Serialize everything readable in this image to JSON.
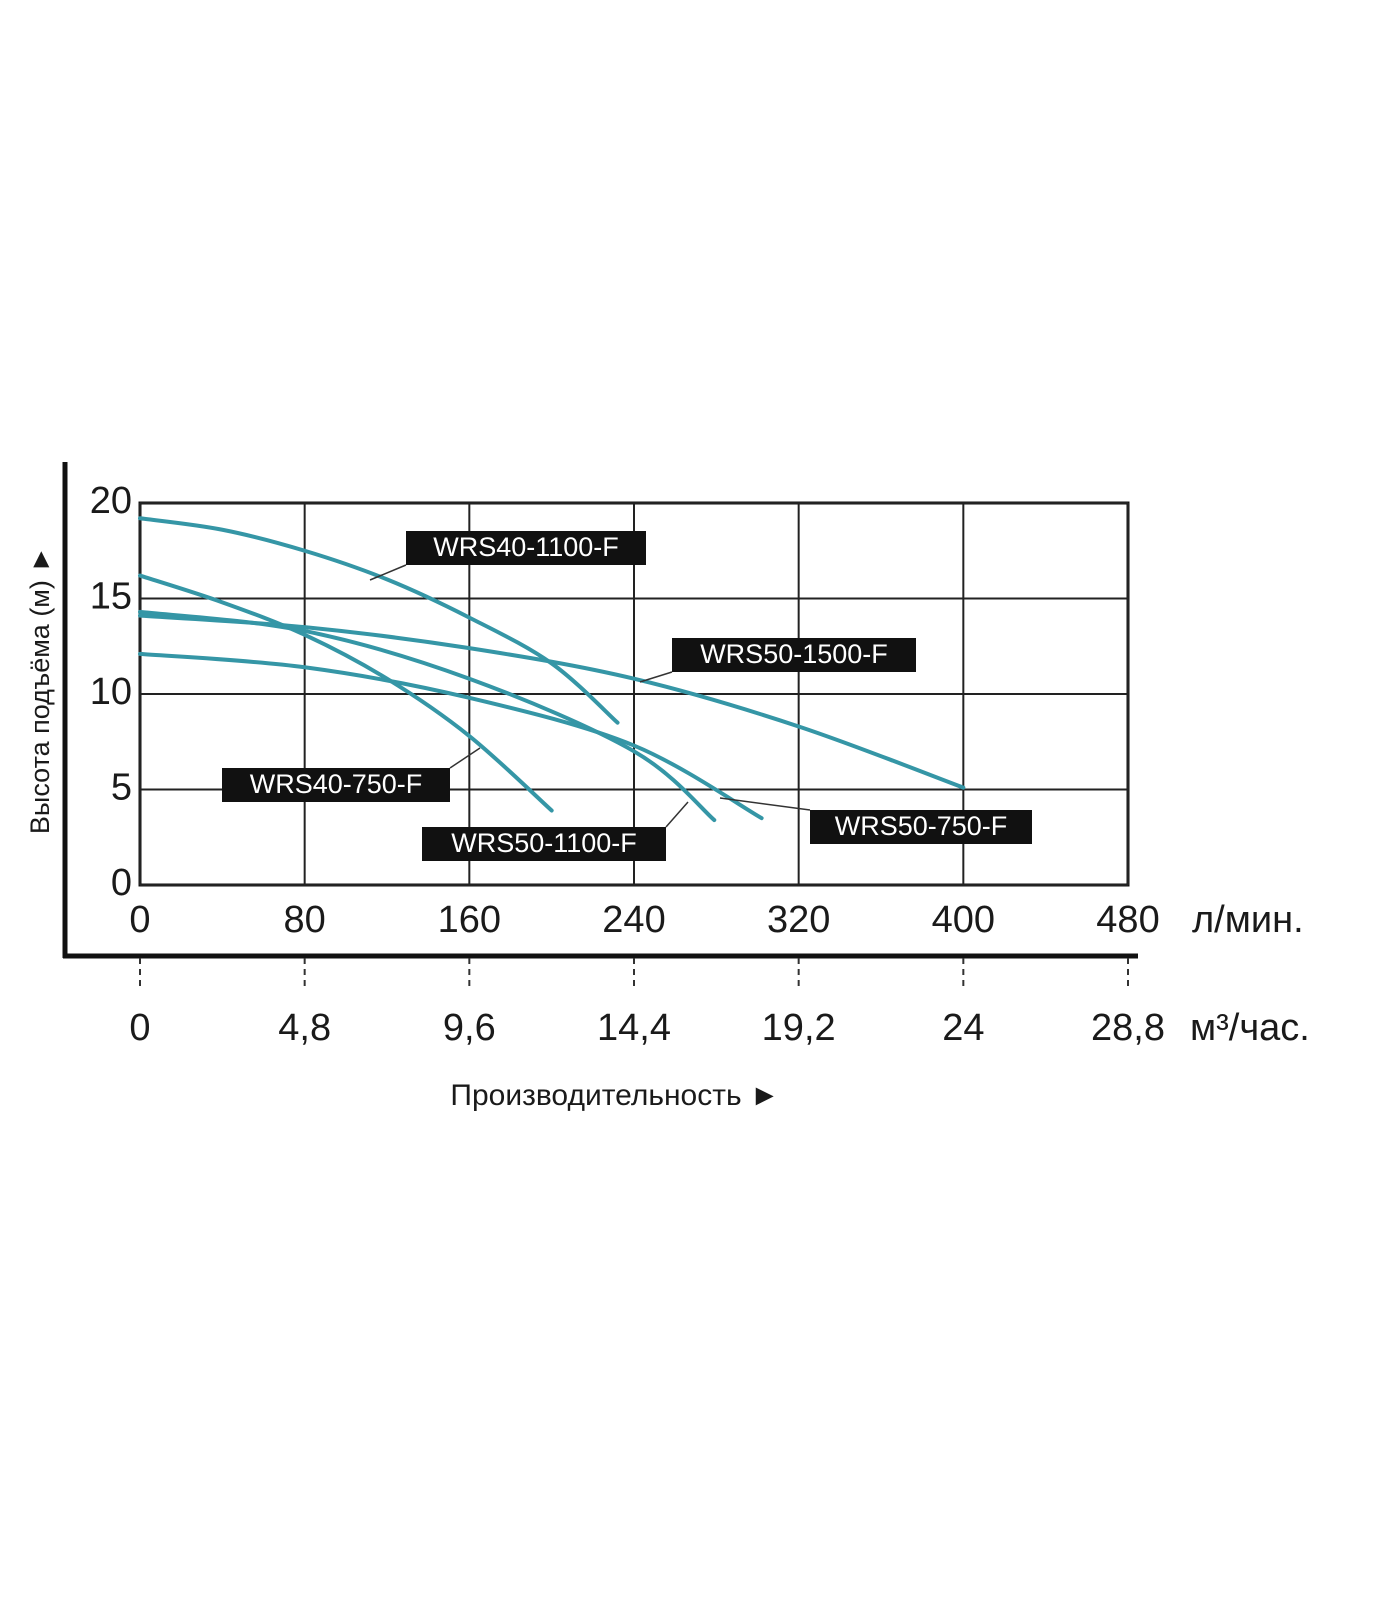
{
  "chart_data": {
    "type": "line",
    "ylabel": "Высота подъёма (м) ►",
    "xlabel": "Производительность ►",
    "x_unit": "л/мин.",
    "x2_unit": "м³/час.",
    "xlim": [
      0,
      480
    ],
    "xticks": [
      0,
      80,
      160,
      240,
      320,
      400,
      480
    ],
    "x2lim": [
      0,
      28.8
    ],
    "x2ticks": [
      0,
      {
        "value": 4.8,
        "label": "4,8"
      },
      {
        "value": 9.6,
        "label": "9,6"
      },
      {
        "value": 14.4,
        "label": "14,4"
      },
      {
        "value": 19.2,
        "label": "19,2"
      },
      24,
      {
        "value": 28.8,
        "label": "28,8"
      }
    ],
    "ylim": [
      0,
      20
    ],
    "yticks": [
      0,
      5,
      10,
      15,
      20
    ],
    "grid": true,
    "series": [
      {
        "name": "WRS40-1100-F",
        "color": "#3596a6",
        "x": [
          0,
          40,
          80,
          120,
          160,
          200,
          232
        ],
        "values": [
          19.2,
          18.6,
          17.5,
          16,
          14,
          11.6,
          8.5
        ]
      },
      {
        "name": "WRS50-1500-F",
        "color": "#3596a6",
        "x": [
          0,
          80,
          160,
          240,
          320,
          400
        ],
        "values": [
          14.1,
          13.5,
          12.4,
          10.8,
          8.3,
          5.1
        ]
      },
      {
        "name": "WRS40-750-F",
        "color": "#3596a6",
        "x": [
          0,
          40,
          80,
          120,
          160,
          200
        ],
        "values": [
          16.2,
          14.8,
          13.1,
          10.8,
          7.8,
          3.9
        ]
      },
      {
        "name": "WRS50-1100-F",
        "color": "#3596a6",
        "x": [
          0,
          80,
          160,
          240,
          279
        ],
        "values": [
          14.3,
          13.3,
          10.8,
          7,
          3.4
        ]
      },
      {
        "name": "WRS50-750-F",
        "color": "#3596a6",
        "x": [
          0,
          80,
          160,
          240,
          302
        ],
        "values": [
          12.1,
          11.4,
          9.8,
          7.3,
          3.5
        ]
      }
    ]
  }
}
